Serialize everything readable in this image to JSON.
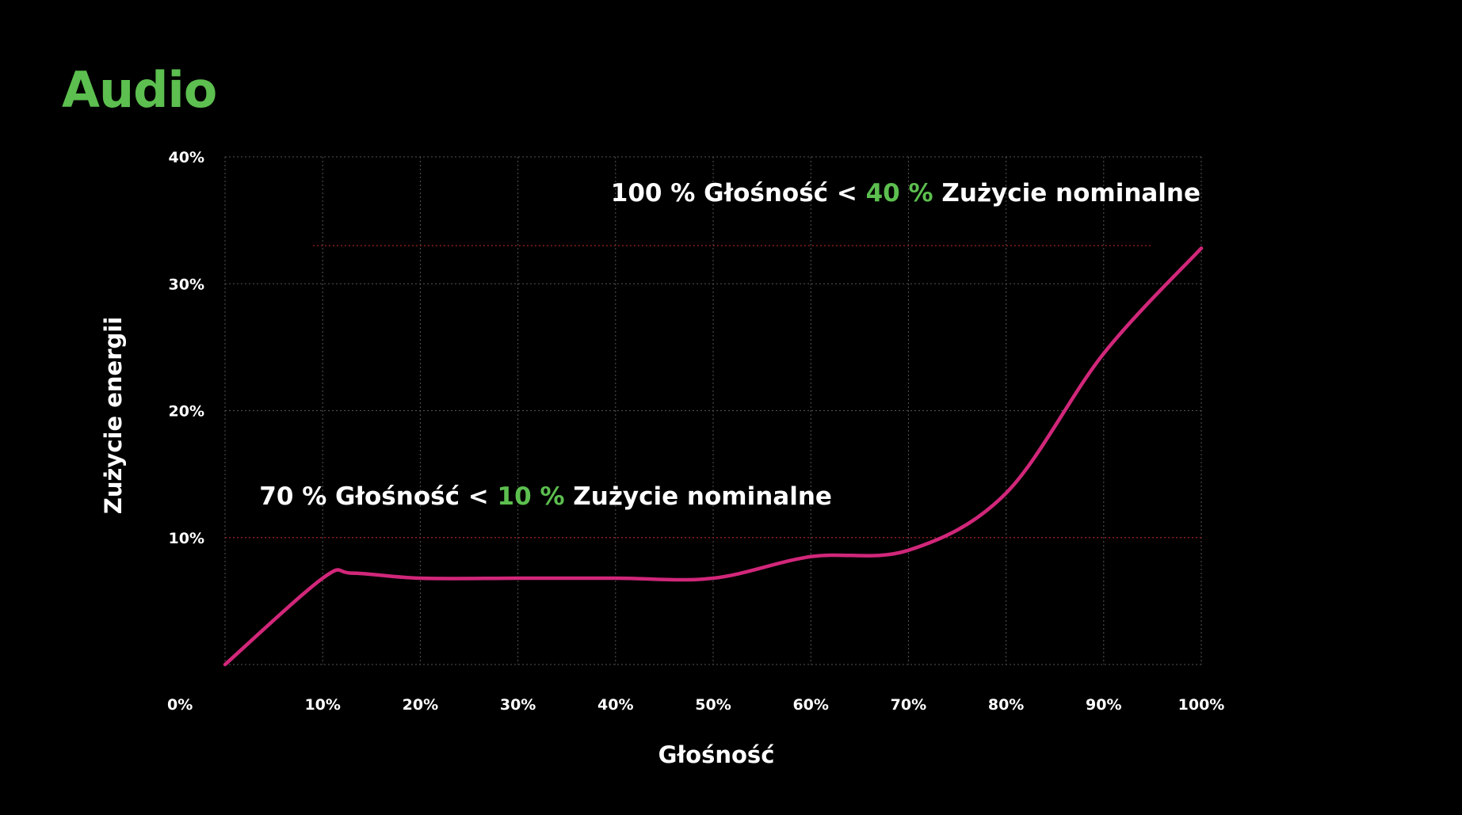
{
  "title": "Audio",
  "colors": {
    "background": "#000000",
    "title": "#5cbf4f",
    "accent_green": "#5cbf4f",
    "line": "#d1277a",
    "grid": "#555555",
    "threshold": "#8a1e1e",
    "text": "#ffffff"
  },
  "chart_data": {
    "type": "line",
    "xlabel": "Głośność",
    "ylabel": "Zużycie energii",
    "xlim": [
      0,
      100
    ],
    "ylim": [
      0,
      40
    ],
    "x_ticks": [
      "0%",
      "10%",
      "20%",
      "30%",
      "40%",
      "50%",
      "60%",
      "70%",
      "80%",
      "90%",
      "100%"
    ],
    "y_ticks": [
      "10%",
      "20%",
      "30%",
      "40%"
    ],
    "grid": true,
    "series": [
      {
        "x": [
          0,
          10,
          13,
          20,
          30,
          40,
          50,
          60,
          70,
          80,
          90,
          100
        ],
        "y": [
          0,
          6.8,
          7.2,
          6.8,
          6.8,
          6.8,
          6.8,
          8.5,
          9.0,
          13.5,
          24.5,
          32.8
        ]
      }
    ],
    "reference_lines": [
      {
        "y": 33,
        "x_range": [
          9,
          95
        ]
      },
      {
        "y": 10,
        "x_range": [
          0,
          100
        ]
      }
    ],
    "annotations": [
      {
        "x": 40,
        "y": 36.5,
        "parts": [
          {
            "text": "100 % Głośność",
            "color": "white"
          },
          {
            "text": " < ",
            "color": "white"
          },
          {
            "text": "40 %",
            "color": "green"
          },
          {
            "text": " Zużycie nominalne",
            "color": "white"
          }
        ]
      },
      {
        "x": 4,
        "y": 12.6,
        "parts": [
          {
            "text": "70 % Głośność",
            "color": "white"
          },
          {
            "text": " < ",
            "color": "white"
          },
          {
            "text": "10 %",
            "color": "green"
          },
          {
            "text": " Zużycie nominalne",
            "color": "white"
          }
        ]
      }
    ]
  }
}
